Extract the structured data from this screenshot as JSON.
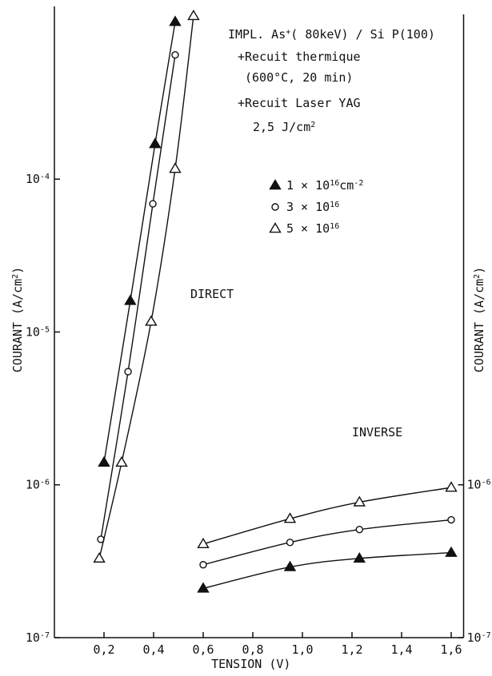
{
  "chart_data": {
    "type": "scatter",
    "log_y": true,
    "xlim": [
      0,
      1.65
    ],
    "ylim": [
      1e-07,
      0.00135
    ],
    "xticks": [
      {
        "value": 0.2,
        "label": "0,2"
      },
      {
        "value": 0.4,
        "label": "0,4"
      },
      {
        "value": 0.6,
        "label": "0,6"
      },
      {
        "value": 0.8,
        "label": "0,8"
      },
      {
        "value": 1.0,
        "label": "1,0"
      },
      {
        "value": 1.2,
        "label": "1,2"
      },
      {
        "value": 1.4,
        "label": "1,4"
      },
      {
        "value": 1.6,
        "label": "1,6"
      }
    ],
    "yticks": [
      {
        "value": 1e-07,
        "label": "10",
        "exp": "-7"
      },
      {
        "value": 1e-06,
        "label": "10",
        "exp": "-6"
      },
      {
        "value": 1e-05,
        "label": "10",
        "exp": "-5"
      },
      {
        "value": 0.0001,
        "label": "10",
        "exp": "-4"
      }
    ],
    "y2ticks": [
      {
        "value": 1e-07,
        "label": "10",
        "exp": "-7"
      },
      {
        "value": 1e-06,
        "label": "10",
        "exp": "-6"
      }
    ],
    "xlabel": "TENSION (V)",
    "ylabel": [
      {
        "text": "COURANT (A/cm"
      },
      {
        "text": "2",
        "sup": true
      },
      {
        "text": ")"
      }
    ],
    "y2label": [
      {
        "text": "COURANT (A/cm"
      },
      {
        "text": "2",
        "sup": true
      },
      {
        "text": ")"
      }
    ],
    "color": "#111111",
    "annotations": [
      [
        {
          "text": "IMPL. As"
        },
        {
          "text": "+",
          "sup": true
        },
        {
          "text": "( 80keV) / Si P(100)"
        }
      ],
      [
        {
          "text": "+Recuit thermique"
        }
      ],
      [
        {
          "text": "(600°C, 20 min)"
        }
      ],
      [
        {
          "text": "+Recuit Laser YAG"
        }
      ],
      [
        {
          "text": "2,5 J/cm"
        },
        {
          "text": "2",
          "sup": true
        }
      ]
    ],
    "legend": [
      {
        "marker": "filled-triangle",
        "label": [
          {
            "text": "1 × 10"
          },
          {
            "text": "16",
            "sup": true
          },
          {
            "text": "cm"
          },
          {
            "text": "-2",
            "sup": true
          }
        ]
      },
      {
        "marker": "open-circle",
        "label": [
          {
            "text": "3 × 10"
          },
          {
            "text": "16",
            "sup": true
          }
        ]
      },
      {
        "marker": "open-triangle",
        "label": [
          {
            "text": "5 × 10"
          },
          {
            "text": "16",
            "sup": true
          }
        ]
      }
    ],
    "groups": [
      {
        "label": "DIRECT",
        "series": [
          {
            "marker": "filled-triangle",
            "x": [
              0.2,
              0.306,
              0.406,
              0.487
            ],
            "values": [
              1.4e-06,
              1.6e-05,
              0.00017,
              0.00107
            ]
          },
          {
            "marker": "open-circle",
            "x": [
              0.187,
              0.297,
              0.397,
              0.487
            ],
            "values": [
              4.4e-07,
              5.5e-06,
              6.9e-05,
              0.00065
            ]
          },
          {
            "marker": "open-triangle",
            "x": [
              0.181,
              0.271,
              0.39,
              0.487,
              0.561
            ],
            "values": [
              3.3e-07,
              1.4e-06,
              1.17e-05,
              0.000117,
              0.00117
            ]
          }
        ]
      },
      {
        "label": "INVERSE",
        "series": [
          {
            "marker": "filled-triangle",
            "x": [
              0.6,
              0.95,
              1.23,
              1.6
            ],
            "values": [
              2.1e-07,
              2.9e-07,
              3.3e-07,
              3.6e-07
            ]
          },
          {
            "marker": "open-circle",
            "x": [
              0.6,
              0.95,
              1.23,
              1.6
            ],
            "values": [
              3e-07,
              4.2e-07,
              5.1e-07,
              5.9e-07
            ]
          },
          {
            "marker": "open-triangle",
            "x": [
              0.6,
              0.95,
              1.23,
              1.6
            ],
            "values": [
              4.1e-07,
              6e-07,
              7.7e-07,
              9.6e-07
            ]
          }
        ]
      }
    ]
  }
}
